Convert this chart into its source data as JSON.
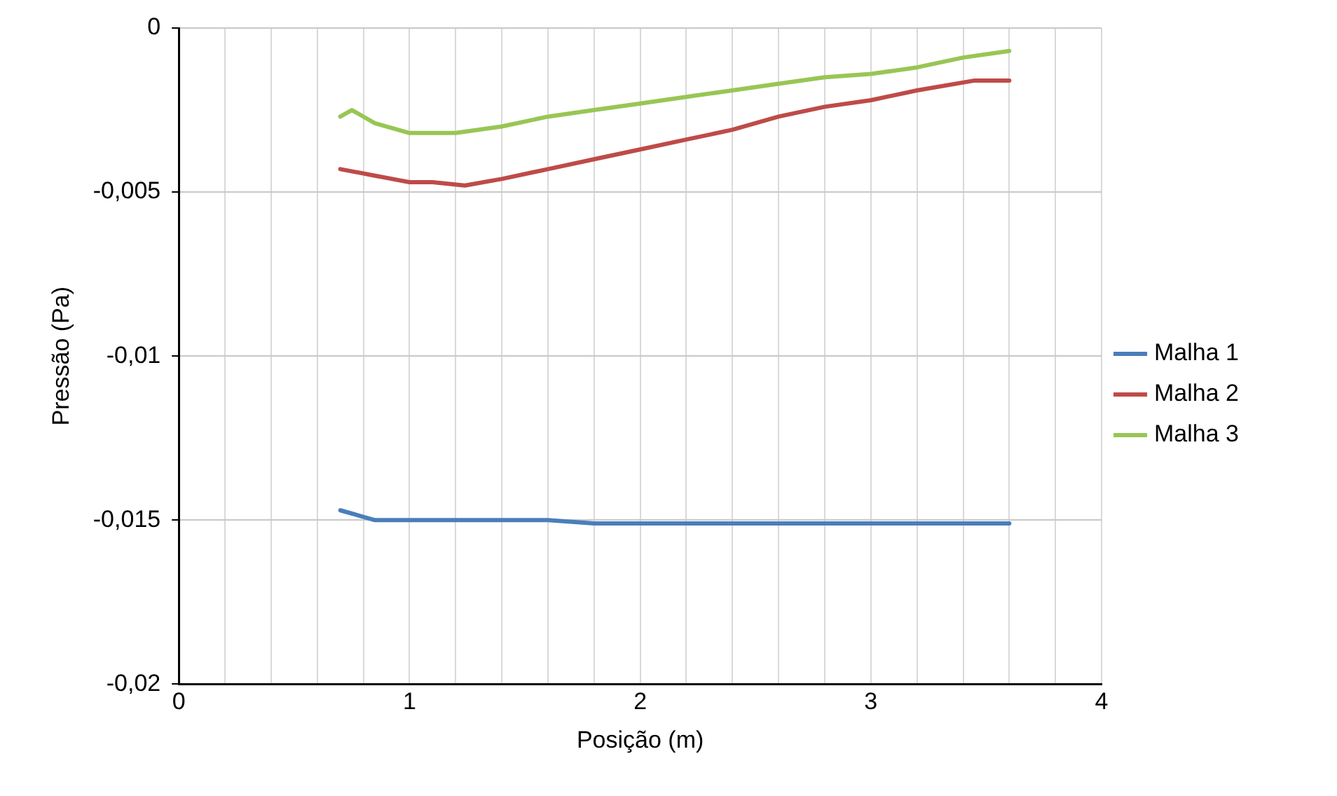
{
  "chart_data": {
    "type": "line",
    "xlabel": "Posição (m)",
    "ylabel": "Pressão (Pa)",
    "xlim": [
      0,
      4
    ],
    "ylim": [
      -0.02,
      0
    ],
    "xticks": [
      0,
      {
        "value": 0.2,
        "label": null
      },
      {
        "value": 0.4,
        "label": null
      },
      {
        "value": 0.6,
        "label": null
      },
      {
        "value": 0.8,
        "label": null
      },
      1,
      {
        "value": 1.2,
        "label": null
      },
      {
        "value": 1.4,
        "label": null
      },
      {
        "value": 1.6,
        "label": null
      },
      {
        "value": 1.8,
        "label": null
      },
      2,
      {
        "value": 2.2,
        "label": null
      },
      {
        "value": 2.4,
        "label": null
      },
      {
        "value": 2.6,
        "label": null
      },
      {
        "value": 2.8,
        "label": null
      },
      3,
      {
        "value": 3.2,
        "label": null
      },
      {
        "value": 3.4,
        "label": null
      },
      {
        "value": 3.6,
        "label": null
      },
      {
        "value": 3.8,
        "label": null
      },
      4
    ],
    "yticks": [
      {
        "value": -0.02,
        "label": "-0,02"
      },
      {
        "value": -0.015,
        "label": "-0,015"
      },
      {
        "value": -0.01,
        "label": "-0,01"
      },
      {
        "value": -0.005,
        "label": "-0,005"
      },
      0
    ],
    "grid": true,
    "legend": "right",
    "marker": "none",
    "line_style": "solid",
    "series": [
      {
        "name": "Malha 1",
        "color": "#4a7ebb",
        "x": [
          0.7,
          0.85,
          1.0,
          1.2,
          1.4,
          1.6,
          1.8,
          2.0,
          2.4,
          2.8,
          3.2,
          3.6
        ],
        "values": [
          -0.0147,
          -0.015,
          -0.015,
          -0.015,
          -0.015,
          -0.015,
          -0.0151,
          -0.0151,
          -0.0151,
          -0.0151,
          -0.0151,
          -0.0151
        ]
      },
      {
        "name": "Malha 2",
        "color": "#be4b48",
        "x": [
          0.7,
          0.85,
          1.0,
          1.1,
          1.24,
          1.4,
          1.6,
          1.8,
          2.0,
          2.2,
          2.4,
          2.6,
          2.8,
          3.0,
          3.2,
          3.45,
          3.6
        ],
        "values": [
          -0.0043,
          -0.0045,
          -0.0047,
          -0.0047,
          -0.0048,
          -0.0046,
          -0.0043,
          -0.004,
          -0.0037,
          -0.0034,
          -0.0031,
          -0.0027,
          -0.0024,
          -0.0022,
          -0.0019,
          -0.0016,
          -0.0016
        ]
      },
      {
        "name": "Malha 3",
        "color": "#98c654",
        "x": [
          0.7,
          0.75,
          0.85,
          1.0,
          1.2,
          1.4,
          1.6,
          1.8,
          2.0,
          2.2,
          2.4,
          2.6,
          2.8,
          3.0,
          3.2,
          3.4,
          3.6
        ],
        "values": [
          -0.0027,
          -0.0025,
          -0.0029,
          -0.0032,
          -0.0032,
          -0.003,
          -0.0027,
          -0.0025,
          -0.0023,
          -0.0021,
          -0.0019,
          -0.0017,
          -0.0015,
          -0.0014,
          -0.0012,
          -0.0009,
          -0.0007
        ]
      }
    ]
  }
}
